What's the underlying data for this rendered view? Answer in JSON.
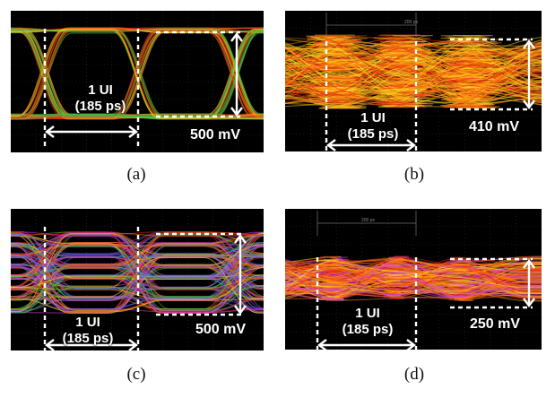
{
  "panels": [
    {
      "id": "a",
      "caption": "(a)",
      "ui_label": "1 UI",
      "ui_period": "(185 ps)",
      "amplitude_label": "500 mV",
      "style": "clean",
      "top_readout": ""
    },
    {
      "id": "b",
      "caption": "(b)",
      "ui_label": "1 UI",
      "ui_period": "(185 ps)",
      "amplitude_label": "410 mV",
      "style": "dense-yellow",
      "top_readout": "200 ps"
    },
    {
      "id": "c",
      "caption": "(c)",
      "ui_label": "1 UI",
      "ui_period": "(185 ps)",
      "amplitude_label": "500 mV",
      "style": "multilevel",
      "top_readout": ""
    },
    {
      "id": "d",
      "caption": "(d)",
      "ui_label": "1 UI",
      "ui_period": "(185 ps)",
      "amplitude_label": "250 mV",
      "style": "dense-yellow",
      "top_readout": "200 ps"
    }
  ],
  "colors": {
    "background": "#000000",
    "grid": "#2c2c2c",
    "trace_yellow": "#ffd21e",
    "trace_orange": "#ff7a10",
    "trace_red": "#e8220e",
    "trace_green": "#2ec84a",
    "trace_blue": "#4a6cff",
    "trace_magenta": "#d23ad8",
    "marker": "#ffffff"
  }
}
